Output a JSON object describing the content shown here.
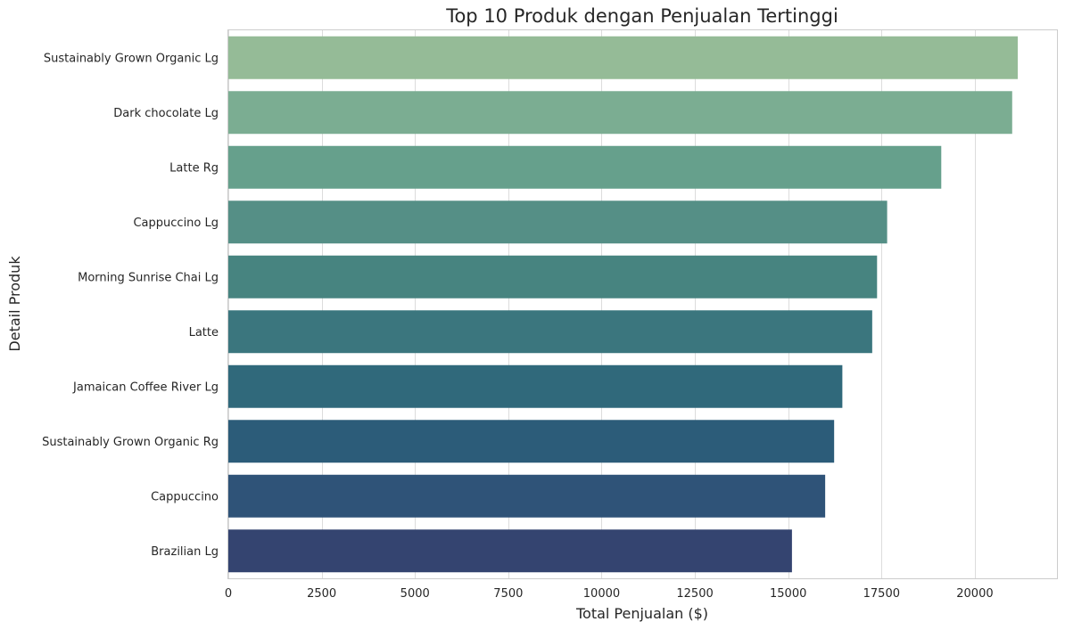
{
  "chart_data": {
    "type": "bar",
    "orientation": "horizontal",
    "title": "Top 10 Produk dengan Penjualan Tertinggi",
    "xlabel": "Total Penjualan ($)",
    "ylabel": "Detail Produk",
    "xlim": [
      0,
      22200
    ],
    "xticks": [
      0,
      2500,
      5000,
      7500,
      10000,
      12500,
      15000,
      17500,
      20000
    ],
    "xtick_labels": [
      "0",
      "2500",
      "5000",
      "7500",
      "10000",
      "12500",
      "15000",
      "17500",
      "20000"
    ],
    "grid": "vertical",
    "categories": [
      "Sustainably Grown Organic Lg",
      "Dark chocolate Lg",
      "Latte Rg",
      "Cappuccino Lg",
      "Morning Sunrise Chai Lg",
      "Latte",
      "Jamaican Coffee River Lg",
      "Sustainably Grown Organic Rg",
      "Cappuccino",
      "Brazilian Lg"
    ],
    "values": [
      21150,
      21000,
      19100,
      17650,
      17380,
      17250,
      16450,
      16230,
      15990,
      15100
    ],
    "colors": [
      "#95bb97",
      "#7bad92",
      "#66a08c",
      "#558f86",
      "#478480",
      "#3b767e",
      "#30697b",
      "#2c5c79",
      "#2f5378",
      "#344470"
    ]
  }
}
